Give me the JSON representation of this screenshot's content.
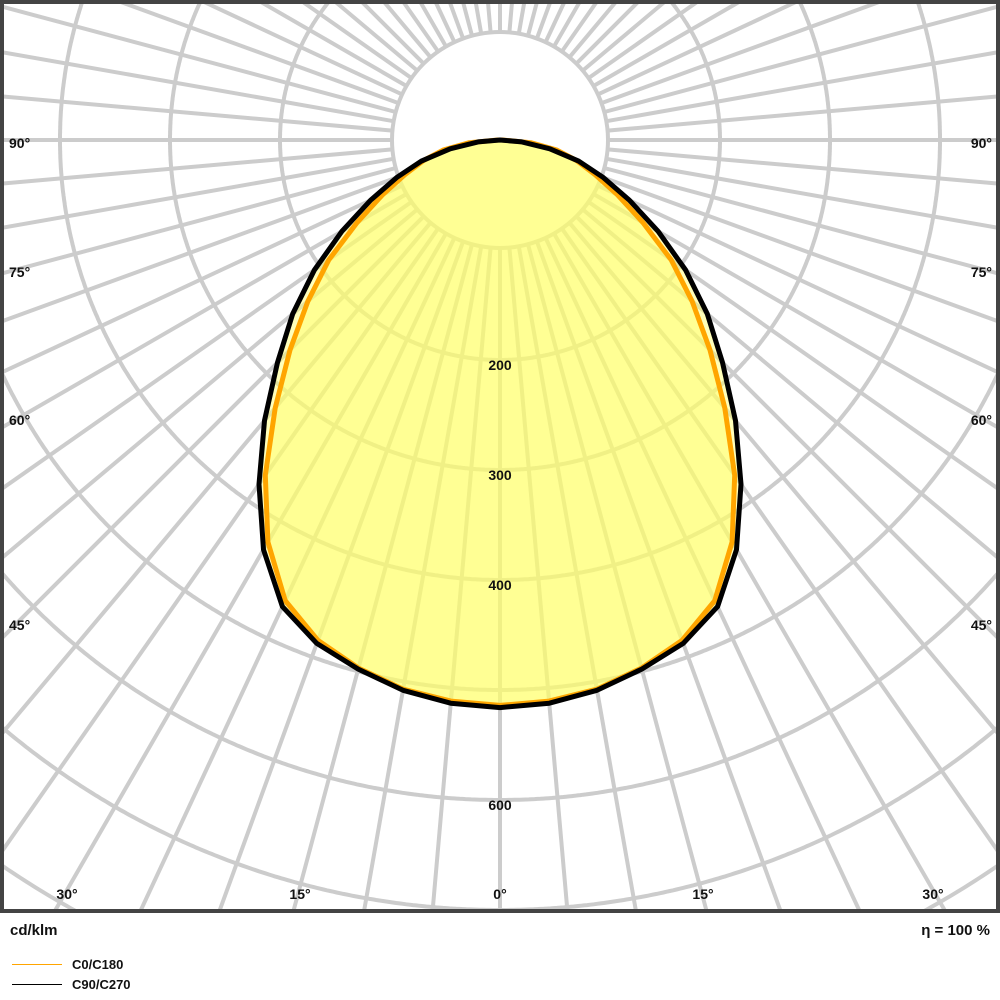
{
  "chart_data": {
    "type": "polar-line",
    "unit_label": "cd/klm",
    "efficiency_label": "η = 100 %",
    "radial_ticks": [
      100,
      200,
      300,
      400,
      500,
      600
    ],
    "radial_tick_labels": [
      "200",
      "300",
      "400",
      "600"
    ],
    "angle_tick_labels_bottom": [
      "30°",
      "15°",
      "0°",
      "15°",
      "30°"
    ],
    "angle_tick_labels_side": [
      "90°",
      "75°",
      "60°",
      "45°"
    ],
    "grid": true,
    "angles_deg": [
      0,
      5,
      10,
      15,
      20,
      25,
      30,
      35,
      40,
      45,
      50,
      55,
      60,
      65,
      70,
      75,
      80,
      85,
      90
    ],
    "series": [
      {
        "name": "C0/C180",
        "color": "#ffa500",
        "values": [
          514,
          512,
          507,
          497,
          484,
          462,
          422,
          372,
          318,
          270,
          228,
          190,
          150,
          118,
          92,
          72,
          52,
          28,
          2
        ]
      },
      {
        "name": "C90/C270",
        "color": "#000000",
        "values": [
          516,
          514,
          508,
          498,
          487,
          468,
          430,
          382,
          333,
          286,
          246,
          206,
          166,
          130,
          100,
          74,
          46,
          20,
          0
        ]
      }
    ],
    "fill_color": "#ffff66",
    "legend_placement": "bottom-left"
  }
}
